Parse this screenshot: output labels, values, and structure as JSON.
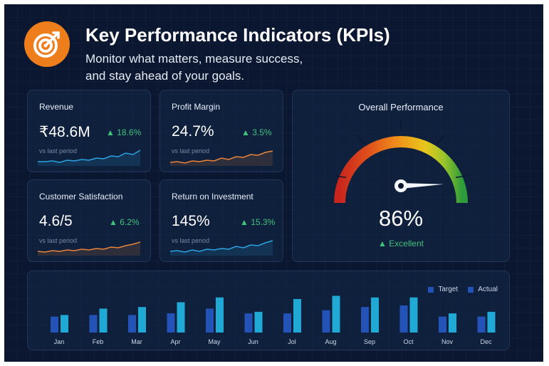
{
  "header": {
    "title": "Key Performance Indicators (KPIs)",
    "subtitle": "Monitor what matters, measure success, and stay ahead of your goals.",
    "logo_icon": "target-icon",
    "logo_color": "#ee7d1c"
  },
  "kpis": [
    {
      "label": "Revenue",
      "value": "₹48.6M",
      "delta": "18.6%",
      "sublabel": "vs last period",
      "trend": "up",
      "spark_color": "#2aa4e0"
    },
    {
      "label": "Profit Margin",
      "value": "24.7%",
      "delta": "3.5%",
      "sublabel": "vs last period",
      "trend": "up",
      "spark_color": "#e8843a"
    },
    {
      "label": "Customer Satisfaction",
      "value": "4.6/5",
      "delta": "6.2%",
      "sublabel": "vs last period",
      "trend": "up",
      "spark_color": "#e8843a"
    },
    {
      "label": "Return on Investment",
      "value": "145%",
      "delta": "15.3%",
      "sublabel": "vs last period",
      "trend": "up",
      "spark_color": "#2aa4e0"
    }
  ],
  "overall": {
    "title": "Overall Performance",
    "value": "86%",
    "status": "Excellent",
    "level": 0.86
  },
  "colors": {
    "accent_green": "#3fc27a",
    "target_bar": "#2453b8",
    "actual_bar": "#21a9d6",
    "background": "#0b1730"
  },
  "chart_data": {
    "type": "bar",
    "categories": [
      "Jan",
      "Feb",
      "Mar",
      "Apr",
      "May",
      "Jun",
      "Jol",
      "Aug",
      "Sep",
      "Oct",
      "Nov",
      "Dec"
    ],
    "series": [
      {
        "name": "Target",
        "values": [
          20,
          22,
          22,
          24,
          30,
          24,
          24,
          28,
          32,
          34,
          20,
          20
        ]
      },
      {
        "name": "Actual",
        "values": [
          22,
          30,
          32,
          38,
          44,
          26,
          42,
          46,
          44,
          44,
          24,
          26
        ]
      }
    ],
    "ylim": [
      0,
      50
    ],
    "legend": "top-right"
  }
}
